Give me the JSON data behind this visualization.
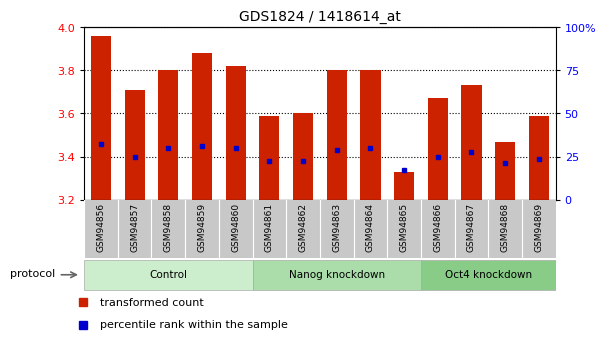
{
  "title": "GDS1824 / 1418614_at",
  "samples": [
    "GSM94856",
    "GSM94857",
    "GSM94858",
    "GSM94859",
    "GSM94860",
    "GSM94861",
    "GSM94862",
    "GSM94863",
    "GSM94864",
    "GSM94865",
    "GSM94866",
    "GSM94867",
    "GSM94868",
    "GSM94869"
  ],
  "transformed_count": [
    3.96,
    3.71,
    3.8,
    3.88,
    3.82,
    3.59,
    3.6,
    3.8,
    3.8,
    3.33,
    3.67,
    3.73,
    3.47,
    3.59
  ],
  "percentile_rank": [
    3.46,
    3.4,
    3.44,
    3.45,
    3.44,
    3.38,
    3.38,
    3.43,
    3.44,
    3.34,
    3.4,
    3.42,
    3.37,
    3.39
  ],
  "ylim_left": [
    3.2,
    4.0
  ],
  "ylim_right": [
    0,
    100
  ],
  "yticks_left": [
    3.2,
    3.4,
    3.6,
    3.8,
    4.0
  ],
  "yticks_right": [
    0,
    25,
    50,
    75,
    100
  ],
  "yticklabels_right": [
    "0",
    "25",
    "50",
    "75",
    "100%"
  ],
  "groups": [
    {
      "label": "Control",
      "start": 0,
      "end": 5,
      "color": "#cceecc"
    },
    {
      "label": "Nanog knockdown",
      "start": 5,
      "end": 10,
      "color": "#aaddaa"
    },
    {
      "label": "Oct4 knockdown",
      "start": 10,
      "end": 14,
      "color": "#88cc88"
    }
  ],
  "bar_color": "#cc2200",
  "dot_color": "#0000cc",
  "bar_bottom": 3.2,
  "xtick_bg": "#c8c8c8",
  "protocol_label": "protocol",
  "legend_items": [
    {
      "label": "transformed count",
      "color": "#cc2200"
    },
    {
      "label": "percentile rank within the sample",
      "color": "#0000cc"
    }
  ]
}
